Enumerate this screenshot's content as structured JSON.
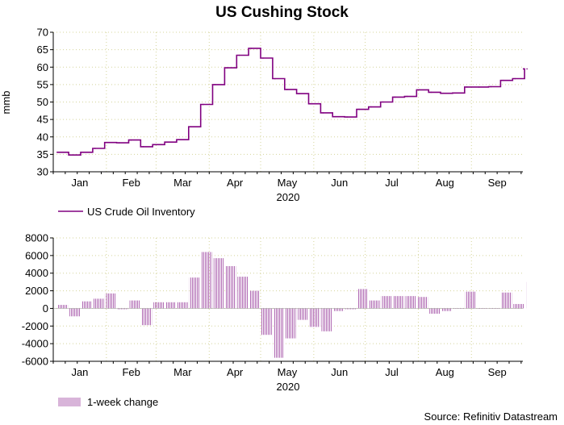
{
  "title": "US Cushing Stock",
  "source": "Source: Refinitiv Datastream",
  "colors": {
    "line": "#800080",
    "bar": "#b06ab3",
    "grid": "#d4d49a",
    "axis": "#000000"
  },
  "chart_data": [
    {
      "type": "line",
      "title": "US Cushing Stock",
      "ylabel": "mmb",
      "xlabel": "2020",
      "ylim": [
        30,
        70
      ],
      "yticks": [
        30,
        35,
        40,
        45,
        50,
        55,
        60,
        65,
        70
      ],
      "xticks": [
        "Jan",
        "Feb",
        "Mar",
        "Apr",
        "May",
        "Jun",
        "Jul",
        "Aug",
        "Sep"
      ],
      "grid": true,
      "legend_position": "bottom-left",
      "series": [
        {
          "name": "US Crude Oil Inventory",
          "x": [
            "2020-01-03",
            "2020-01-10",
            "2020-01-17",
            "2020-01-24",
            "2020-01-31",
            "2020-02-07",
            "2020-02-14",
            "2020-02-21",
            "2020-02-28",
            "2020-03-06",
            "2020-03-13",
            "2020-03-20",
            "2020-03-27",
            "2020-04-03",
            "2020-04-10",
            "2020-04-17",
            "2020-04-24",
            "2020-05-01",
            "2020-05-08",
            "2020-05-15",
            "2020-05-22",
            "2020-05-29",
            "2020-06-05",
            "2020-06-12",
            "2020-06-19",
            "2020-06-26",
            "2020-07-03",
            "2020-07-10",
            "2020-07-17",
            "2020-07-24",
            "2020-07-31",
            "2020-08-07",
            "2020-08-14",
            "2020-08-21",
            "2020-08-28",
            "2020-09-04",
            "2020-09-11",
            "2020-09-18",
            "2020-09-25",
            "2020-10-02"
          ],
          "values": [
            35.6,
            34.8,
            35.6,
            36.7,
            38.4,
            38.3,
            39.1,
            37.2,
            37.8,
            38.5,
            39.2,
            42.9,
            49.3,
            55.0,
            59.8,
            63.4,
            65.4,
            62.6,
            56.7,
            53.6,
            52.4,
            49.5,
            46.9,
            45.8,
            45.7,
            47.9,
            48.6,
            50.0,
            51.4,
            51.6,
            53.5,
            52.8,
            52.5,
            52.6,
            54.3,
            54.3,
            54.4,
            56.2,
            56.7,
            59.5
          ]
        }
      ]
    },
    {
      "type": "bar",
      "xlabel": "2020",
      "ylim": [
        -6000,
        8000
      ],
      "yticks": [
        -6000,
        -4000,
        -2000,
        0,
        2000,
        4000,
        6000,
        8000
      ],
      "xticks": [
        "Jan",
        "Feb",
        "Mar",
        "Apr",
        "May",
        "Jun",
        "Jul",
        "Aug",
        "Sep"
      ],
      "grid": true,
      "legend_position": "bottom-left",
      "series": [
        {
          "name": "1-week change",
          "x": [
            "2020-01-03",
            "2020-01-10",
            "2020-01-17",
            "2020-01-24",
            "2020-01-31",
            "2020-02-07",
            "2020-02-14",
            "2020-02-21",
            "2020-02-28",
            "2020-03-06",
            "2020-03-13",
            "2020-03-20",
            "2020-03-27",
            "2020-04-03",
            "2020-04-10",
            "2020-04-17",
            "2020-04-24",
            "2020-05-01",
            "2020-05-08",
            "2020-05-15",
            "2020-05-22",
            "2020-05-29",
            "2020-06-05",
            "2020-06-12",
            "2020-06-19",
            "2020-06-26",
            "2020-07-03",
            "2020-07-10",
            "2020-07-17",
            "2020-07-24",
            "2020-07-31",
            "2020-08-07",
            "2020-08-14",
            "2020-08-21",
            "2020-08-28",
            "2020-09-04",
            "2020-09-11",
            "2020-09-18",
            "2020-09-25",
            "2020-10-02"
          ],
          "values": [
            400,
            -900,
            800,
            1100,
            1700,
            -100,
            900,
            -1900,
            700,
            700,
            700,
            3500,
            6400,
            5700,
            4800,
            3600,
            2000,
            -3000,
            -5600,
            -3400,
            -1300,
            -2100,
            -2600,
            -300,
            -100,
            2200,
            900,
            1400,
            1400,
            1400,
            1300,
            -600,
            -300,
            0,
            1900,
            0,
            0,
            1800,
            500,
            3000
          ]
        }
      ]
    }
  ]
}
